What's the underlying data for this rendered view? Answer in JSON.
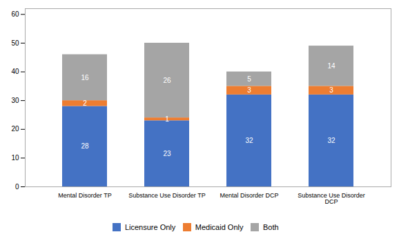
{
  "chart_data": {
    "type": "bar",
    "stacked": true,
    "categories": [
      "Mental Disorder TP",
      "Substance Use Disorder TP",
      "Mental Disorder DCP",
      "Substance Use Disorder\nDCP"
    ],
    "series": [
      {
        "name": "Licensure Only",
        "color": "#4472C4",
        "values": [
          28,
          23,
          32,
          32
        ]
      },
      {
        "name": "Medicaid Only",
        "color": "#ED7D31",
        "values": [
          2,
          1,
          3,
          3
        ]
      },
      {
        "name": "Both",
        "color": "#A5A5A5",
        "values": [
          16,
          26,
          5,
          14
        ]
      }
    ],
    "ylim": [
      0,
      62
    ],
    "yticks": [
      0,
      10,
      20,
      30,
      40,
      50,
      60
    ],
    "grid": false,
    "data_labels": true,
    "legend": "bottom"
  }
}
